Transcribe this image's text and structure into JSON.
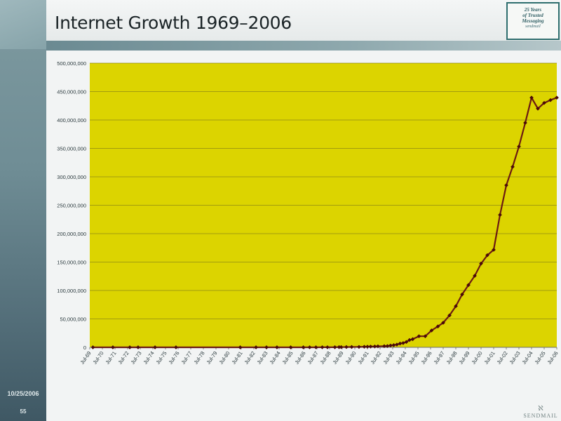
{
  "slide": {
    "title": "Internet Growth 1969–2006",
    "date": "10/25/2006",
    "page_number": "55",
    "badge_lines": [
      "25 Years",
      "of Trusted",
      "Messaging"
    ],
    "badge_signature": "sendmail",
    "footer_logo": "SENDMAIL"
  },
  "colors": {
    "plot_background": "#dcd400",
    "series_line": "#6b1a12",
    "marker": "#4a0a08",
    "gridline": "#8f8a14",
    "sidebar": "#6f8d95"
  },
  "chart_data": {
    "type": "line",
    "title": "",
    "xlabel": "",
    "ylabel": "",
    "ylim": [
      0,
      500000000
    ],
    "yticks": [
      0,
      50000000,
      100000000,
      150000000,
      200000000,
      250000000,
      300000000,
      350000000,
      400000000,
      450000000,
      500000000
    ],
    "ytick_labels": [
      "0",
      "50,000,000",
      "100,000,000",
      "150,000,000",
      "200,000,000",
      "250,000,000",
      "300,000,000",
      "350,000,000",
      "400,000,000",
      "450,000,000",
      "500,000,000"
    ],
    "xticks": [
      1969.5,
      1970.5,
      1971.5,
      1972.5,
      1973.5,
      1974.5,
      1975.5,
      1976.5,
      1977.5,
      1978.5,
      1979.5,
      1980.5,
      1981.5,
      1982.5,
      1983.5,
      1984.5,
      1985.5,
      1986.5,
      1987.5,
      1988.5,
      1989.5,
      1990.5,
      1991.5,
      1992.5,
      1993.5,
      1994.5,
      1995.5,
      1996.5,
      1997.5,
      1998.5,
      1999.5,
      2000.5,
      2001.5,
      2002.5,
      2003.5,
      2004.5,
      2005.5,
      2006.5
    ],
    "xtick_labels": [
      "Jul-69",
      "Jul-70",
      "Jul-71",
      "Jul-72",
      "Jul-73",
      "Jul-74",
      "Jul-75",
      "Jul-76",
      "Jul-77",
      "Jul-78",
      "Jul-79",
      "Jul-80",
      "Jul-81",
      "Jul-82",
      "Jul-83",
      "Jul-84",
      "Jul-85",
      "Jul-86",
      "Jul-87",
      "Jul-88",
      "Jul-89",
      "Jul-90",
      "Jul-91",
      "Jul-92",
      "Jul-93",
      "Jul-94",
      "Jul-95",
      "Jul-96",
      "Jul-97",
      "Jul-98",
      "Jul-99",
      "Jul-00",
      "Jul-01",
      "Jul-02",
      "Jul-03",
      "Jul-04",
      "Jul-05",
      "Jul-06"
    ],
    "xlim": [
      1969.5,
      2006.5
    ],
    "grid": true,
    "legend": "none",
    "series": [
      {
        "x": [
          1969.75,
          1971.33,
          1972.67,
          1973.33,
          1974.67,
          1976.33,
          1981.42,
          1982.67,
          1983.5,
          1984.33,
          1985.42,
          1986.42,
          1986.92,
          1987.42,
          1987.92,
          1988.33,
          1988.92,
          1989.25,
          1989.42,
          1989.83,
          1990.25,
          1990.83,
          1991.25,
          1991.5,
          1991.75,
          1992.08,
          1992.33,
          1992.83,
          1993.08,
          1993.33,
          1993.58,
          1993.83,
          1994.08,
          1994.33,
          1994.58,
          1994.83,
          1995.08,
          1995.58,
          1996.08,
          1996.58,
          1997.08,
          1997.5,
          1998.0,
          1998.5,
          1999.0,
          1999.5,
          2000.0,
          2000.5,
          2001.0,
          2001.5,
          2002.0,
          2002.5,
          2003.0,
          2003.5,
          2004.0,
          2004.5,
          2005.0,
          2005.5,
          2006.0,
          2006.5
        ],
        "values": [
          4,
          23,
          31,
          35,
          62,
          111,
          213,
          235,
          562,
          1024,
          1961,
          5089,
          28174,
          56000,
          80000,
          130000,
          159000,
          313000,
          376000,
          535000,
          617000,
          727000,
          992000,
          1136000,
          1313000,
          1486000,
          1776000,
          2056000,
          2217000,
          3212000,
          3864000,
          4852000,
          6642000,
          7500000,
          9472000,
          12881000,
          14352000,
          19540000,
          19540000,
          29670000,
          36739000,
          43230000,
          56218000,
          72398092,
          93047785,
          109574429,
          125888197,
          147344723,
          162128493,
          171638297,
          233101481,
          285139107,
          317646084,
          353284187,
          394991609,
          439286364,
          420000000,
          430000000,
          435000000,
          439286364
        ]
      }
    ]
  }
}
